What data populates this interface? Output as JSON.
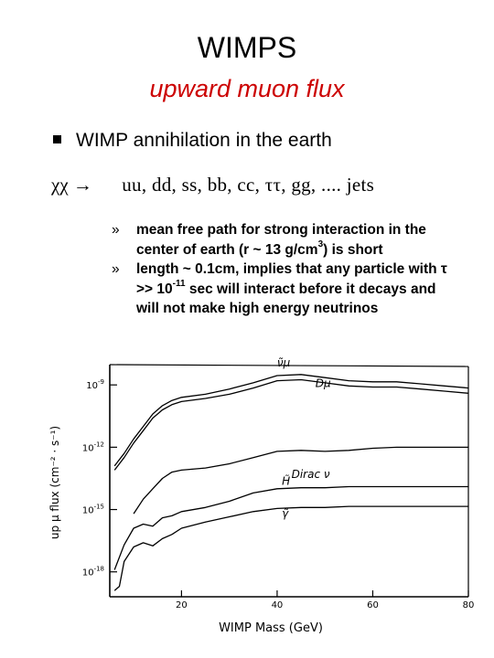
{
  "slide": {
    "title": "WIMPS",
    "subtitle": "upward muon flux",
    "bullet": "WIMP annihilation in the earth",
    "formula": {
      "lhs": "χχ →",
      "rhs": "uu, dd, ss, bb, cc, ττ, gg, .... jets"
    },
    "subpoints": [
      {
        "marker": "»",
        "pre": "mean free path for strong interaction in the center of earth (r ~ 13 g/cm",
        "sup": "3",
        "post": ") is short"
      },
      {
        "marker": "»",
        "pre": "length ~ 0.1cm, implies that any particle with τ >> 10",
        "sup": "-11",
        "post": " sec will interact before it decays and will not make high energy neutrinos"
      }
    ]
  },
  "chart_data": {
    "type": "line",
    "xlabel": "WIMP Mass (GeV)",
    "ylabel": "up μ flux (cm⁻² · s⁻¹)",
    "x_ticks": [
      "20",
      "40",
      "60",
      "80"
    ],
    "y_ticks": [
      "10-9",
      "10-12",
      "10-15",
      "10-18"
    ],
    "xlim": [
      5,
      80
    ],
    "ylog": true,
    "series": [
      {
        "name": "ν̃μ",
        "x": [
          6,
          8,
          10,
          12,
          14,
          16,
          18,
          20,
          25,
          30,
          35,
          40,
          45,
          50,
          55,
          60,
          65,
          70,
          75,
          80
        ],
        "log10_y": [
          -12.9,
          -12.3,
          -11.6,
          -11.0,
          -10.4,
          -10.0,
          -9.75,
          -9.6,
          -9.45,
          -9.2,
          -8.9,
          -8.55,
          -8.5,
          -8.65,
          -8.8,
          -8.85,
          -8.85,
          -8.95,
          -9.05,
          -9.15
        ]
      },
      {
        "name": "Dμ",
        "x": [
          6,
          8,
          10,
          12,
          14,
          16,
          18,
          20,
          25,
          30,
          35,
          40,
          45,
          50,
          55,
          60,
          65,
          70,
          75,
          80
        ],
        "log10_y": [
          -13.1,
          -12.5,
          -11.8,
          -11.2,
          -10.6,
          -10.2,
          -9.95,
          -9.8,
          -9.65,
          -9.45,
          -9.15,
          -8.8,
          -8.75,
          -8.9,
          -9.05,
          -9.1,
          -9.1,
          -9.2,
          -9.3,
          -9.4
        ]
      },
      {
        "name": "Dirac ν",
        "x": [
          10,
          12,
          14,
          16,
          18,
          20,
          25,
          30,
          35,
          40,
          45,
          50,
          55,
          60,
          65,
          70,
          75,
          80
        ],
        "log10_y": [
          -15.2,
          -14.5,
          -14.0,
          -13.5,
          -13.2,
          -13.1,
          -13.0,
          -12.8,
          -12.5,
          -12.2,
          -12.15,
          -12.2,
          -12.15,
          -12.05,
          -12.0,
          -12.0,
          -12.0,
          -12.0
        ]
      },
      {
        "name": "H̃",
        "x": [
          6,
          8,
          10,
          12,
          14,
          16,
          18,
          20,
          25,
          30,
          35,
          40,
          45,
          50,
          55,
          60,
          65,
          70,
          75,
          80
        ],
        "log10_y": [
          -17.9,
          -16.7,
          -15.9,
          -15.7,
          -15.8,
          -15.4,
          -15.3,
          -15.1,
          -14.9,
          -14.6,
          -14.2,
          -14.0,
          -13.95,
          -13.95,
          -13.9,
          -13.9,
          -13.9,
          -13.9,
          -13.9,
          -13.9
        ]
      },
      {
        "name": "γ̃",
        "x": [
          6,
          7,
          8,
          10,
          12,
          14,
          16,
          18,
          20,
          25,
          30,
          35,
          40,
          45,
          50,
          55,
          60,
          65,
          70,
          75,
          80
        ],
        "log10_y": [
          -18.9,
          -18.7,
          -17.5,
          -16.8,
          -16.6,
          -16.75,
          -16.4,
          -16.2,
          -15.9,
          -15.6,
          -15.35,
          -15.1,
          -14.95,
          -14.9,
          -14.9,
          -14.85,
          -14.85,
          -14.85,
          -14.85,
          -14.85,
          -14.85
        ]
      }
    ]
  }
}
